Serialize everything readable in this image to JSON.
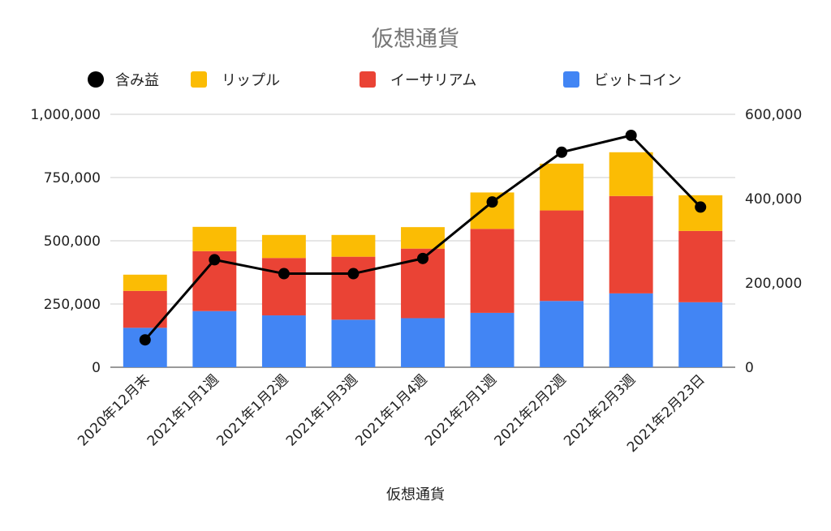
{
  "chart_data": {
    "type": "bar",
    "stacked": true,
    "title": "仮想通貨",
    "xlabel": "仮想通貨",
    "ylabel": "",
    "categories": [
      "2020年12月末",
      "2021年1月1週",
      "2021年1月2週",
      "2021年1月3週",
      "2021年1月4週",
      "2021年2月1週",
      "2021年2月2週",
      "2021年2月3週",
      "2021年2月23日"
    ],
    "series": [
      {
        "name": "ビットコイン",
        "type": "bar",
        "axis": "left",
        "color": "#4285f4",
        "values": [
          156000,
          222000,
          205000,
          188000,
          194000,
          215000,
          262000,
          292000,
          257000
        ]
      },
      {
        "name": "イーサリアム",
        "type": "bar",
        "axis": "left",
        "color": "#ea4335",
        "values": [
          146000,
          237000,
          227000,
          249000,
          275000,
          332000,
          358000,
          385000,
          282000
        ]
      },
      {
        "name": "リップル",
        "type": "bar",
        "axis": "left",
        "color": "#fbbc04",
        "values": [
          64000,
          96000,
          91000,
          86000,
          85000,
          144000,
          185000,
          173000,
          141000
        ]
      },
      {
        "name": "含み益",
        "type": "line",
        "axis": "right",
        "color": "#000000",
        "values": [
          65000,
          255000,
          222000,
          222000,
          258000,
          392000,
          510000,
          550000,
          380000
        ]
      }
    ],
    "ylim": [
      0,
      1000000
    ],
    "y2lim": [
      0,
      600000
    ],
    "yticks": [
      "0",
      "250,000",
      "500,000",
      "750,000",
      "1,000,000"
    ],
    "y2ticks": [
      "0",
      "200,000",
      "400,000",
      "600,000"
    ],
    "legend": [
      {
        "name": "含み益",
        "marker": "circle",
        "color": "#000000"
      },
      {
        "name": "リップル",
        "marker": "square",
        "color": "#fbbc04"
      },
      {
        "name": "イーサリアム",
        "marker": "square",
        "color": "#ea4335"
      },
      {
        "name": "ビットコイン",
        "marker": "square",
        "color": "#4285f4"
      }
    ],
    "legend_position": "top",
    "grid": true
  }
}
